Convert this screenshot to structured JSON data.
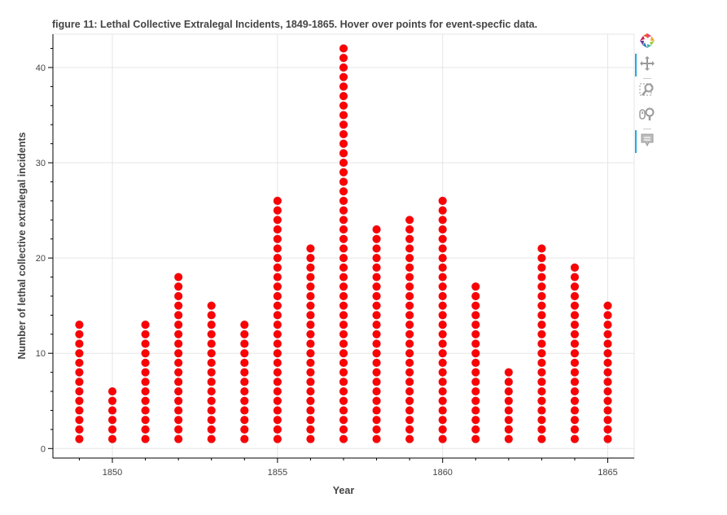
{
  "chart_data": {
    "type": "scatter",
    "title": "figure 11: Lethal Collective Extralegal Incidents, 1849-1865. Hover over points for event-specfic data.",
    "xlabel": "Year",
    "ylabel": "Number of lethal collective extralegal incidents",
    "xlim": [
      1848.2,
      1865.8
    ],
    "ylim": [
      -1,
      43.5
    ],
    "x_ticks": [
      1850,
      1855,
      1860,
      1865
    ],
    "y_ticks": [
      0,
      10,
      20,
      30,
      40
    ],
    "grid": true,
    "series": [
      {
        "color": "#ff0000",
        "years": [
          1849,
          1850,
          1851,
          1852,
          1853,
          1854,
          1855,
          1856,
          1857,
          1858,
          1859,
          1860,
          1861,
          1862,
          1863,
          1864,
          1865
        ],
        "counts": [
          13,
          6,
          13,
          18,
          15,
          13,
          26,
          21,
          42,
          23,
          24,
          26,
          17,
          8,
          21,
          19,
          15
        ]
      }
    ]
  },
  "toolbar": {
    "tools": [
      {
        "name": "bokeh-logo-icon"
      },
      {
        "name": "pan-tool-icon",
        "active": true
      },
      {
        "name": "box-zoom-tool-icon",
        "active": false
      },
      {
        "name": "wheel-zoom-tool-icon",
        "active": false
      },
      {
        "name": "hover-tool-icon",
        "active": true
      }
    ]
  }
}
